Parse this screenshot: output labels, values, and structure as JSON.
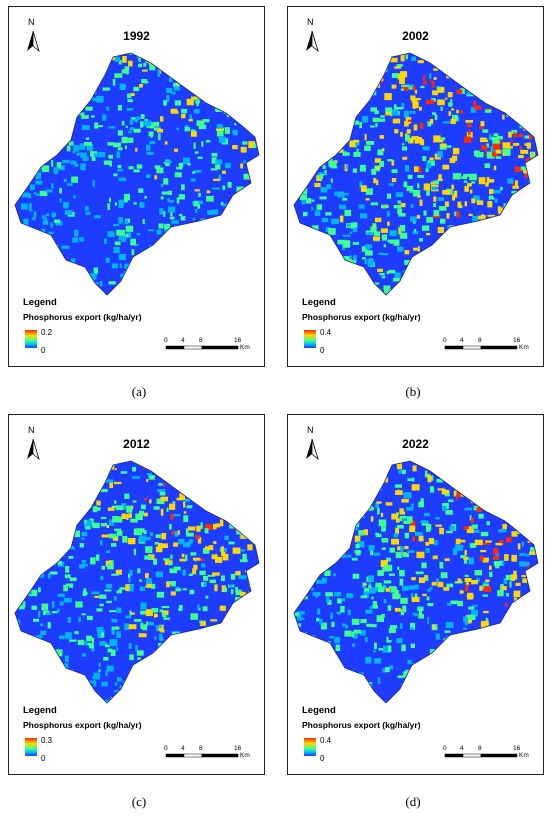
{
  "panels": [
    {
      "year": "1992",
      "legend_title": "Legend",
      "legend_sub": "Phosphorus export (kg/ha/yr)",
      "ramp_max": "0.2",
      "ramp_min": "0",
      "caption": "(a)",
      "north": "N",
      "scale_labels": [
        "0",
        "4",
        "8",
        "16"
      ],
      "scale_unit": "Km",
      "hot_level": 0.7
    },
    {
      "year": "2002",
      "legend_title": "Legend",
      "legend_sub": "Phosphorus export (kg/ha/yr)",
      "ramp_max": "0.4",
      "ramp_min": "0",
      "caption": "(b)",
      "north": "N",
      "scale_labels": [
        "0",
        "4",
        "8",
        "16"
      ],
      "scale_unit": "Km",
      "hot_level": 0.4
    },
    {
      "year": "2012",
      "legend_title": "Legend",
      "legend_sub": "Phosphorus export (kg/ha/yr)",
      "ramp_max": "0.3",
      "ramp_min": "0",
      "caption": "(c)",
      "north": "N",
      "scale_labels": [
        "0",
        "4",
        "8",
        "16"
      ],
      "scale_unit": "Km",
      "hot_level": 0.55
    },
    {
      "year": "2022",
      "legend_title": "Legend",
      "legend_sub": "Phosphorus export (kg/ha/yr)",
      "ramp_max": "0.4",
      "ramp_min": "0",
      "caption": "(d)",
      "north": "N",
      "scale_labels": [
        "0",
        "4",
        "8",
        "16"
      ],
      "scale_unit": "Km",
      "hot_level": 0.5
    }
  ],
  "colors": {
    "low": "#1e3cff",
    "mid_low": "#00b4ff",
    "mid": "#3cff8c",
    "mid_high": "#ffd700",
    "high": "#ff2a00"
  }
}
